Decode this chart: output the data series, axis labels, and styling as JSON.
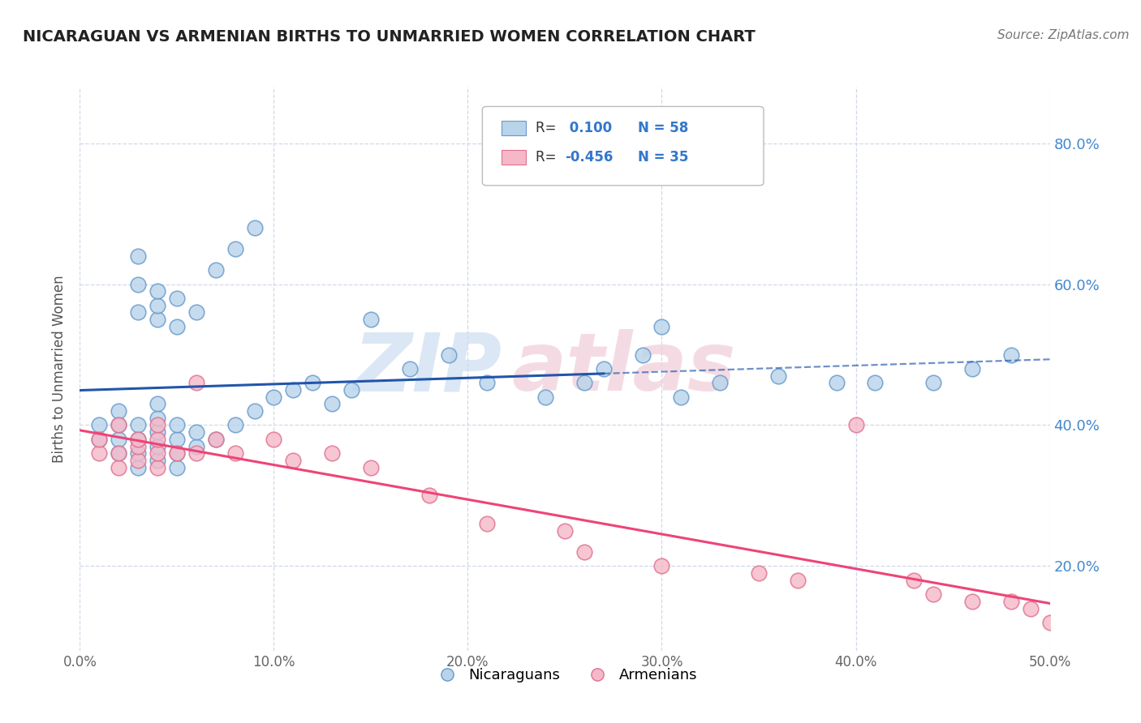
{
  "title": "NICARAGUAN VS ARMENIAN BIRTHS TO UNMARRIED WOMEN CORRELATION CHART",
  "source": "Source: ZipAtlas.com",
  "ylabel": "Births to Unmarried Women",
  "xlim": [
    0.0,
    0.5
  ],
  "ylim": [
    0.08,
    0.88
  ],
  "xtick_labels": [
    "0.0%",
    "",
    "10.0%",
    "",
    "20.0%",
    "",
    "30.0%",
    "",
    "40.0%",
    "",
    "50.0%"
  ],
  "xtick_values": [
    0.0,
    0.05,
    0.1,
    0.15,
    0.2,
    0.25,
    0.3,
    0.35,
    0.4,
    0.45,
    0.5
  ],
  "xtick_major_labels": [
    "0.0%",
    "10.0%",
    "20.0%",
    "30.0%",
    "40.0%",
    "50.0%"
  ],
  "xtick_major_values": [
    0.0,
    0.1,
    0.2,
    0.3,
    0.4,
    0.5
  ],
  "ytick_labels": [
    "20.0%",
    "40.0%",
    "60.0%",
    "80.0%"
  ],
  "ytick_values": [
    0.2,
    0.4,
    0.6,
    0.8
  ],
  "nicaraguan_color_fill": "#b8d4ea",
  "nicaraguan_color_edge": "#6699cc",
  "armenian_color_fill": "#f5b8c8",
  "armenian_color_edge": "#e07090",
  "nicaraguan_line_color": "#2255aa",
  "armenian_line_color": "#ee4477",
  "background_color": "#ffffff",
  "grid_color": "#d0d8e8",
  "watermark_zip_color": "#ccddf0",
  "watermark_atlas_color": "#f0ccd8",
  "nicaraguan_x": [
    0.01,
    0.01,
    0.02,
    0.02,
    0.02,
    0.02,
    0.03,
    0.03,
    0.03,
    0.03,
    0.03,
    0.03,
    0.03,
    0.04,
    0.04,
    0.04,
    0.04,
    0.04,
    0.04,
    0.04,
    0.04,
    0.05,
    0.05,
    0.05,
    0.05,
    0.05,
    0.05,
    0.06,
    0.06,
    0.06,
    0.07,
    0.07,
    0.08,
    0.08,
    0.09,
    0.09,
    0.1,
    0.11,
    0.12,
    0.13,
    0.14,
    0.15,
    0.17,
    0.19,
    0.21,
    0.24,
    0.26,
    0.27,
    0.29,
    0.3,
    0.31,
    0.33,
    0.36,
    0.39,
    0.41,
    0.44,
    0.46,
    0.48
  ],
  "nicaraguan_y": [
    0.38,
    0.4,
    0.36,
    0.38,
    0.4,
    0.42,
    0.34,
    0.36,
    0.38,
    0.4,
    0.56,
    0.6,
    0.64,
    0.35,
    0.37,
    0.39,
    0.41,
    0.43,
    0.55,
    0.57,
    0.59,
    0.34,
    0.36,
    0.38,
    0.4,
    0.54,
    0.58,
    0.37,
    0.39,
    0.56,
    0.38,
    0.62,
    0.4,
    0.65,
    0.42,
    0.68,
    0.44,
    0.45,
    0.46,
    0.43,
    0.45,
    0.55,
    0.48,
    0.5,
    0.46,
    0.44,
    0.46,
    0.48,
    0.5,
    0.54,
    0.44,
    0.46,
    0.47,
    0.46,
    0.46,
    0.46,
    0.48,
    0.5
  ],
  "armenian_x": [
    0.01,
    0.01,
    0.02,
    0.02,
    0.02,
    0.03,
    0.03,
    0.03,
    0.04,
    0.04,
    0.04,
    0.04,
    0.05,
    0.06,
    0.06,
    0.07,
    0.08,
    0.1,
    0.11,
    0.13,
    0.15,
    0.18,
    0.21,
    0.25,
    0.26,
    0.3,
    0.35,
    0.37,
    0.4,
    0.43,
    0.44,
    0.46,
    0.48,
    0.49,
    0.5
  ],
  "armenian_y": [
    0.36,
    0.38,
    0.34,
    0.36,
    0.4,
    0.35,
    0.37,
    0.38,
    0.34,
    0.36,
    0.38,
    0.4,
    0.36,
    0.36,
    0.46,
    0.38,
    0.36,
    0.38,
    0.35,
    0.36,
    0.34,
    0.3,
    0.26,
    0.25,
    0.22,
    0.2,
    0.19,
    0.18,
    0.4,
    0.18,
    0.16,
    0.15,
    0.15,
    0.14,
    0.12
  ]
}
